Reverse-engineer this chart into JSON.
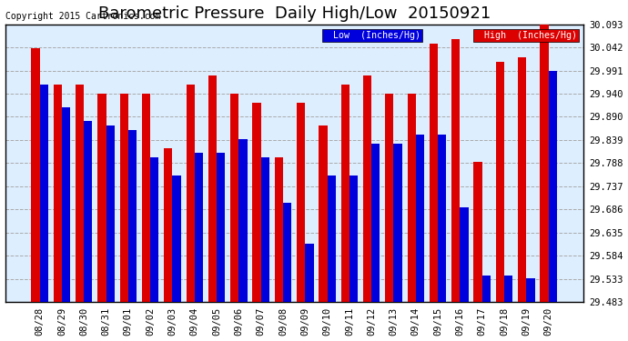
{
  "title": "Barometric Pressure  Daily High/Low  20150921",
  "copyright": "Copyright 2015 Cartronics.com",
  "legend_low": "Low  (Inches/Hg)",
  "legend_high": "High  (Inches/Hg)",
  "dates": [
    "08/28",
    "08/29",
    "08/30",
    "08/31",
    "09/01",
    "09/02",
    "09/03",
    "09/04",
    "09/05",
    "09/06",
    "09/07",
    "09/08",
    "09/09",
    "09/10",
    "09/11",
    "09/12",
    "09/13",
    "09/14",
    "09/15",
    "09/16",
    "09/17",
    "09/18",
    "09/19",
    "09/20"
  ],
  "low_values": [
    29.96,
    29.91,
    29.88,
    29.87,
    29.86,
    29.8,
    29.76,
    29.81,
    29.81,
    29.84,
    29.8,
    29.7,
    29.61,
    29.76,
    29.76,
    29.83,
    29.83,
    29.85,
    29.85,
    29.69,
    29.54,
    29.54,
    29.535,
    29.99
  ],
  "high_values": [
    30.04,
    29.96,
    29.96,
    29.94,
    29.94,
    29.94,
    29.82,
    29.96,
    29.98,
    29.94,
    29.92,
    29.8,
    29.92,
    29.87,
    29.96,
    29.98,
    29.94,
    29.94,
    30.05,
    30.06,
    29.79,
    30.01,
    30.02,
    30.093
  ],
  "low_color": "#0000dd",
  "high_color": "#dd0000",
  "bg_color": "#ffffff",
  "plot_bg_color": "#ddeeff",
  "grid_color": "#aaaaaa",
  "ylim_min": 29.483,
  "ylim_max": 30.093,
  "yticks": [
    29.483,
    29.533,
    29.584,
    29.635,
    29.686,
    29.737,
    29.788,
    29.839,
    29.89,
    29.94,
    29.991,
    30.042,
    30.093
  ],
  "bar_width": 0.38,
  "title_fontsize": 13,
  "tick_fontsize": 7.5,
  "copyright_fontsize": 7
}
